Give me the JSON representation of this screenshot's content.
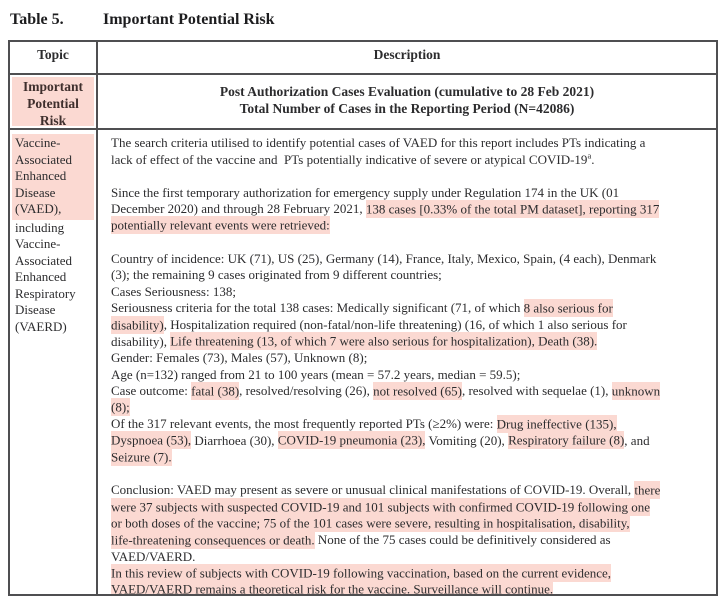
{
  "colors": {
    "highlight": "#fbd9d2",
    "border": "#4f4f51",
    "text": "#2c2c2e"
  },
  "title": {
    "prefix": "Table 5.",
    "text": "Important Potential Risk"
  },
  "table": {
    "columns": [
      "Topic",
      "Description"
    ],
    "subheader": {
      "topic_lines": [
        "Important",
        "Potential",
        "Risk"
      ],
      "description_lines": [
        "Post Authorization Cases Evaluation (cumulative to 28 Feb 2021)",
        "Total Number of Cases in the Reporting Period (N=42086)"
      ]
    },
    "body": {
      "topic": {
        "highlight_lines": [
          "Vaccine-",
          "Associated",
          "Enhanced",
          "Disease",
          "(VAED),"
        ],
        "plain_lines": [
          "including",
          "Vaccine-",
          "Associated",
          "Enhanced",
          "Respiratory",
          "Disease",
          "(VAERD)"
        ]
      },
      "description_blocks": [
        [
          [
            {
              "t": "The search criteria utilised to identify potential cases of VAED for this report includes PTs indicating a"
            }
          ],
          [
            {
              "t": "lack of effect of the vaccine and  PTs potentially indicative of severe or atypical COVID-19"
            },
            {
              "t": "a",
              "sup": true
            },
            {
              "t": "."
            }
          ]
        ],
        [
          [
            {
              "t": "Since the first temporary authorization for emergency supply under Regulation 174 in the UK (01"
            }
          ],
          [
            {
              "t": "December 2020) and through 28 February 2021, "
            },
            {
              "t": "138 cases [0.33% of the total PM dataset], reporting 317",
              "h": true
            }
          ],
          [
            {
              "t": "potentially relevant events were retrieved:",
              "h": true
            }
          ]
        ],
        [
          [
            {
              "t": "Country of incidence: UK (71), US (25), Germany (14), France, Italy, Mexico, Spain, (4 each), Denmark"
            }
          ],
          [
            {
              "t": "(3); the remaining 9 cases originated from 9 different countries;"
            }
          ],
          [
            {
              "t": "Cases Seriousness: 138;"
            }
          ],
          [
            {
              "t": "Seriousness criteria for the total 138 cases: Medically significant (71, of which "
            },
            {
              "t": "8 also serious for",
              "h": true
            }
          ],
          [
            {
              "t": "disability)",
              "h": true
            },
            {
              "t": ", Hospitalization required (non-fatal/non-life threatening) (16, of which 1 also serious for"
            }
          ],
          [
            {
              "t": "disability), "
            },
            {
              "t": "Life threatening (13, of which 7 were also serious for hospitalization), Death (38).",
              "h": true
            }
          ],
          [
            {
              "t": "Gender: Females (73), Males (57), Unknown (8);"
            }
          ],
          [
            {
              "t": "Age (n=132) ranged from 21 to 100 years (mean = 57.2 years, median = 59.5);"
            }
          ],
          [
            {
              "t": "Case outcome: "
            },
            {
              "t": "fatal (38)",
              "h": true
            },
            {
              "t": ", resolved/resolving (26), "
            },
            {
              "t": "not resolved (65)",
              "h": true
            },
            {
              "t": ", resolved with sequelae (1), "
            },
            {
              "t": "unknown",
              "h": true
            }
          ],
          [
            {
              "t": "(8);",
              "h": true
            }
          ],
          [
            {
              "t": "Of the 317 relevant events, the most frequently reported PTs (≥2%) were: "
            },
            {
              "t": "Drug ineffective (135),",
              "h": true
            }
          ],
          [
            {
              "t": "Dyspnoea (53),",
              "h": true
            },
            {
              "t": " Diarrhoea (30), "
            },
            {
              "t": "COVID-19 pneumonia (23),",
              "h": true
            },
            {
              "t": " Vomiting (20), "
            },
            {
              "t": "Respiratory failure (8)",
              "h": true
            },
            {
              "t": ", and"
            }
          ],
          [
            {
              "t": "Seizure (7).",
              "h": true
            }
          ]
        ],
        [
          [
            {
              "t": "Conclusion: VAED may present as severe or unusual clinical manifestations of COVID-19. Overall, "
            },
            {
              "t": "there",
              "h": true
            }
          ],
          [
            {
              "t": "were 37 subjects with suspected COVID-19 and 101 subjects with confirmed COVID-19 following one",
              "h": true
            }
          ],
          [
            {
              "t": "or both doses of the vaccine; 75 of the 101 cases were severe, resulting in hospitalisation, disability,",
              "h": true
            }
          ],
          [
            {
              "t": "life-threatening consequences or death.",
              "h": true
            },
            {
              "t": " None of the 75 cases could be definitively considered as"
            }
          ],
          [
            {
              "t": "VAED/VAERD."
            }
          ],
          [
            {
              "t": "In this review of subjects with COVID-19 following vaccination, based on the current evidence,",
              "h": true
            }
          ],
          [
            {
              "t": "VAED/VAERD remains a theoretical risk for the vaccine. Surveillance will continue.",
              "h": true
            }
          ]
        ]
      ]
    }
  }
}
